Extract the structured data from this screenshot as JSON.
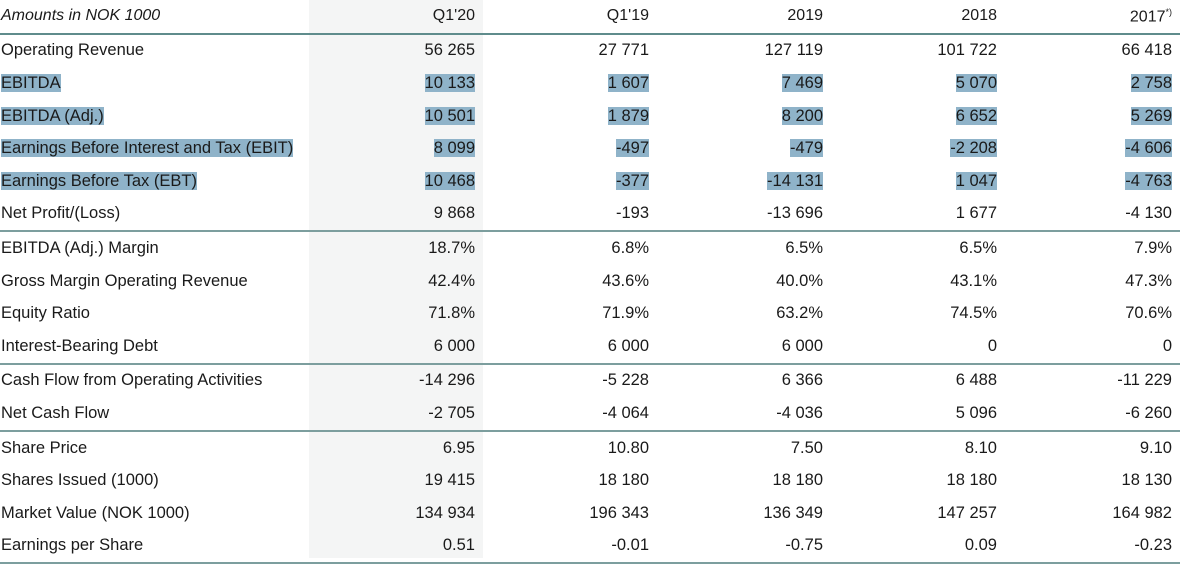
{
  "header": {
    "label": "Amounts in NOK 1000",
    "columns": [
      "Q1'20",
      "Q1'19",
      "2019",
      "2018",
      "2017"
    ],
    "footnote_mark": "*)"
  },
  "rows": [
    {
      "label": "Operating Revenue",
      "values": [
        "56 265",
        "27 771",
        "127 119",
        "101 722",
        "66 418"
      ],
      "highlighted": false
    },
    {
      "label": "EBITDA",
      "values": [
        "10 133",
        "1 607",
        "7 469",
        "5 070",
        "2 758"
      ],
      "highlighted": true
    },
    {
      "label": "EBITDA (Adj.)",
      "values": [
        "10 501",
        "1 879",
        "8 200",
        "6 652",
        "5 269"
      ],
      "highlighted": true
    },
    {
      "label": "Earnings Before Interest and Tax (EBIT)",
      "values": [
        "8 099",
        "-497",
        "-479",
        "-2 208",
        "-4 606"
      ],
      "highlighted": true
    },
    {
      "label": "Earnings Before Tax (EBT)",
      "values": [
        "10 468",
        "-377",
        "-14 131",
        "1 047",
        "-4 763"
      ],
      "highlighted": true
    },
    {
      "label": "Net Profit/(Loss)",
      "values": [
        "9 868",
        "-193",
        "-13 696",
        "1 677",
        "-4 130"
      ],
      "highlighted": false
    },
    {
      "label": "EBITDA (Adj.) Margin",
      "values": [
        "18.7%",
        "6.8%",
        "6.5%",
        "6.5%",
        "7.9%"
      ],
      "highlighted": false
    },
    {
      "label": "Gross Margin Operating Revenue",
      "values": [
        "42.4%",
        "43.6%",
        "40.0%",
        "43.1%",
        "47.3%"
      ],
      "highlighted": false
    },
    {
      "label": "Equity Ratio",
      "values": [
        "71.8%",
        "71.9%",
        "63.2%",
        "74.5%",
        "70.6%"
      ],
      "highlighted": false
    },
    {
      "label": "Interest-Bearing Debt",
      "values": [
        "6 000",
        "6 000",
        "6 000",
        "0",
        "0"
      ],
      "highlighted": false
    },
    {
      "label": "Cash Flow from Operating Activities",
      "values": [
        "-14 296",
        "-5 228",
        "6 366",
        "6 488",
        "-11 229"
      ],
      "highlighted": false
    },
    {
      "label": "Net Cash Flow",
      "values": [
        "-2 705",
        "-4 064",
        "-4 036",
        "5 096",
        "-6 260"
      ],
      "highlighted": false
    },
    {
      "label": "Share Price",
      "values": [
        "6.95",
        "10.80",
        "7.50",
        "8.10",
        "9.10"
      ],
      "highlighted": false
    },
    {
      "label": "Shares Issued (1000)",
      "values": [
        "19 415",
        "18 180",
        "18 180",
        "18 180",
        "18 130"
      ],
      "highlighted": false
    },
    {
      "label": "Market Value (NOK 1000)",
      "values": [
        "134 934",
        "196 343",
        "136 349",
        "147 257",
        "164 982"
      ],
      "highlighted": false
    },
    {
      "label": "Earnings per Share",
      "values": [
        "0.51",
        "-0.01",
        "-0.75",
        "0.09",
        "-0.23"
      ],
      "highlighted": false
    }
  ],
  "colors": {
    "rule": "#7c9e9e",
    "text_highlight": "#8fb3c9",
    "current_column_bg": "#f4f5f5"
  }
}
